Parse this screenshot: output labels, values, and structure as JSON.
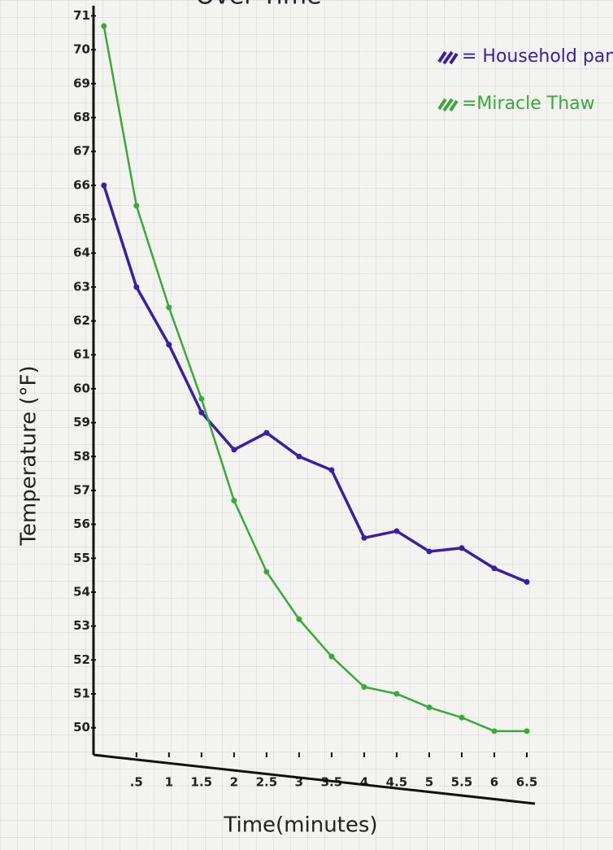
{
  "chart_data": {
    "type": "line",
    "title": "Over Time",
    "x_label": "Time(minutes)",
    "y_label": "Temperature (°F)",
    "x": [
      0,
      0.5,
      1,
      1.5,
      2,
      2.5,
      3,
      3.5,
      4,
      4.5,
      5,
      5.5,
      6,
      6.5
    ],
    "series": [
      {
        "name": "= Household pan",
        "color": "#3a1fa3",
        "values": [
          66.0,
          63.0,
          61.3,
          59.3,
          58.2,
          58.7,
          58.0,
          57.6,
          55.6,
          55.8,
          55.2,
          55.3,
          54.7,
          54.3
        ]
      },
      {
        "name": "=Miracle Thaw",
        "color": "#3aa83a",
        "values": [
          70.7,
          65.4,
          62.4,
          59.7,
          56.7,
          54.6,
          53.2,
          52.1,
          51.2,
          51.0,
          50.6,
          50.3,
          49.9,
          49.9
        ]
      }
    ],
    "xlim": [
      -0.16,
      6.75
    ],
    "ylim": [
      49.2,
      71.3
    ],
    "xticks": [
      {
        "value": 0.5,
        "label": ".5"
      },
      1,
      1.5,
      2,
      2.5,
      3,
      3.5,
      4,
      4.5,
      5,
      5.5,
      6,
      6.5
    ],
    "yticks": [
      50,
      51,
      52,
      53,
      54,
      55,
      56,
      57,
      58,
      59,
      60,
      61,
      62,
      63,
      64,
      65,
      66,
      67,
      68,
      69,
      70,
      71
    ],
    "grid": true
  }
}
